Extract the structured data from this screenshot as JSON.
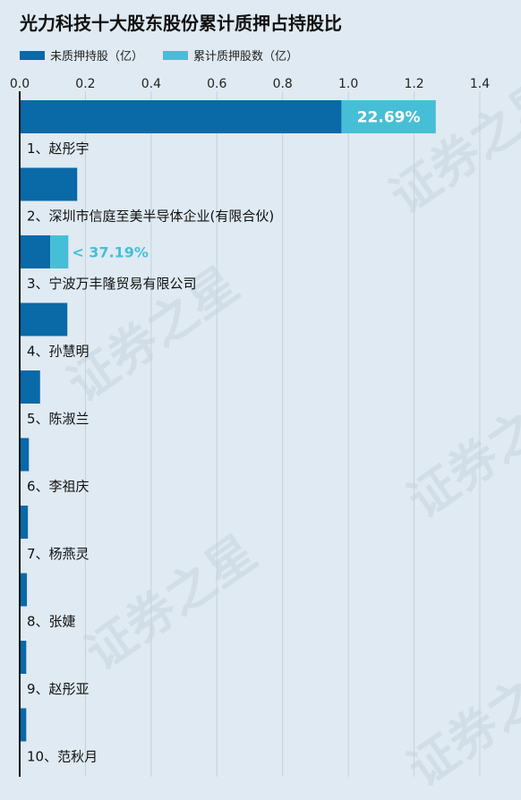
{
  "title": "光力科技十大股东股份累计质押占持股比",
  "legend": {
    "unpledged": "未质押持股（亿）",
    "pledged": "累计质押股数（亿）"
  },
  "colors": {
    "unpledged": "#0a69a7",
    "pledged": "#46bfd6",
    "background": "#dfeaf2"
  },
  "watermark": "证券之星",
  "chart_data": {
    "type": "bar",
    "orientation": "horizontal",
    "stacked": true,
    "xlim": [
      0,
      1.4
    ],
    "xticks": [
      "0.0",
      "0.2",
      "0.4",
      "0.6",
      "0.8",
      "1.0",
      "1.2",
      "1.4"
    ],
    "categories": [
      "1、赵彤宇",
      "2、深圳市信庭至美半导体企业(有限合伙)",
      "3、宁波万丰隆贸易有限公司",
      "4、孙慧明",
      "5、陈淑兰",
      "6、李祖庆",
      "7、杨燕灵",
      "8、张婕",
      "9、赵彤亚",
      "10、范秋月"
    ],
    "series": [
      {
        "name": "未质押持股（亿）",
        "values": [
          0.979,
          0.175,
          0.093,
          0.145,
          0.062,
          0.028,
          0.025,
          0.022,
          0.02,
          0.02
        ]
      },
      {
        "name": "累计质押股数（亿）",
        "values": [
          0.287,
          0,
          0.055,
          0,
          0,
          0,
          0,
          0,
          0,
          0
        ]
      }
    ],
    "annotations": [
      "22.69%",
      "",
      "< 37.19%",
      "",
      "",
      "",
      "",
      "",
      "",
      ""
    ],
    "grid": true
  }
}
